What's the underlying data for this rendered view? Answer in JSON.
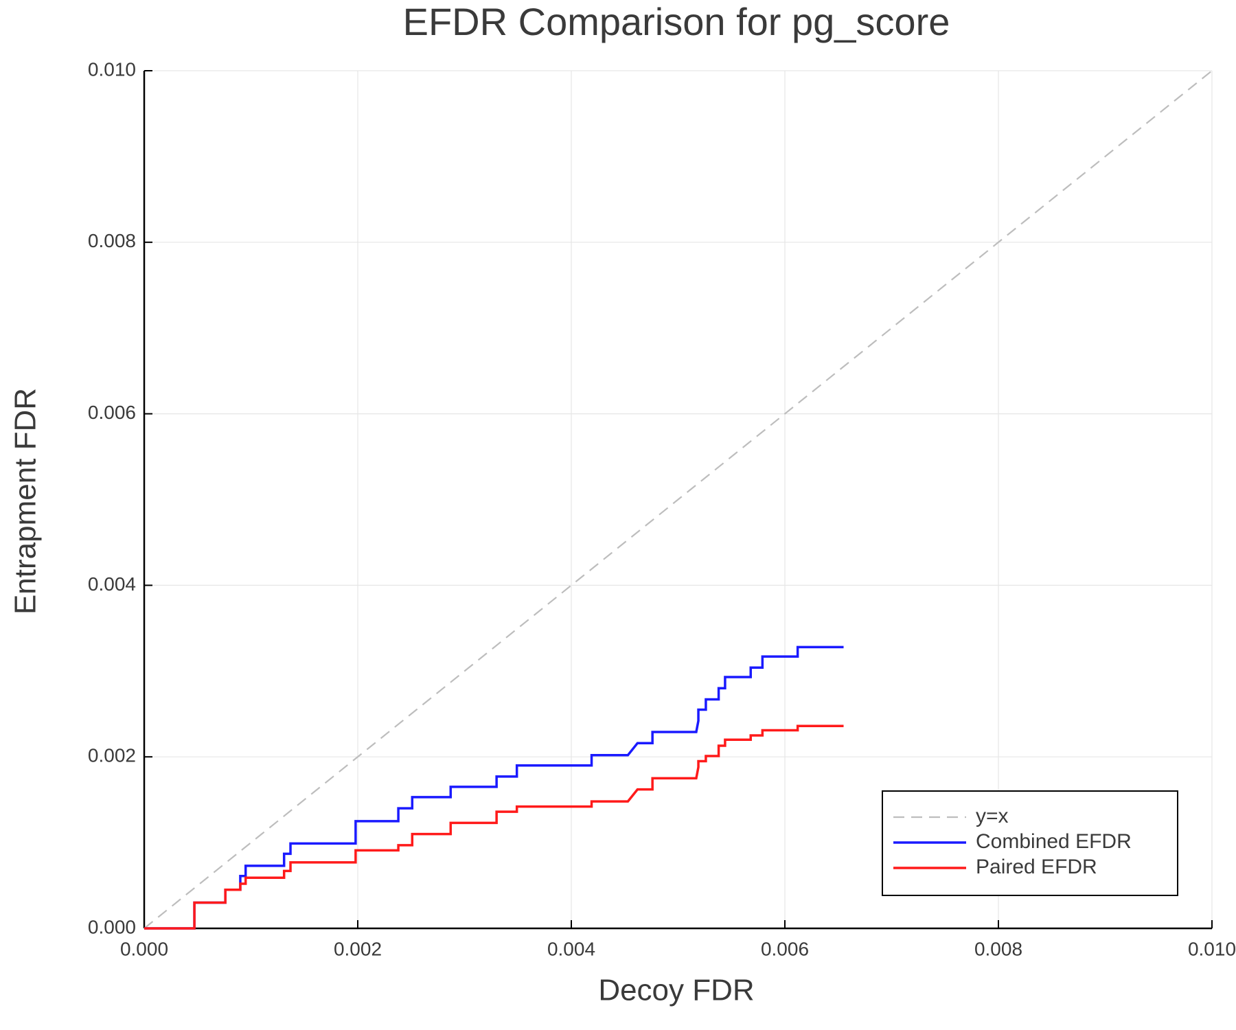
{
  "chart_data": {
    "type": "line",
    "title": "EFDR Comparison for pg_score",
    "x_label": "Decoy FDR",
    "y_label": "Entrapment FDR",
    "xlim": [
      0,
      0.01
    ],
    "ylim": [
      0,
      0.01
    ],
    "xticks": [
      {
        "value": 0,
        "label": "0.000"
      },
      {
        "value": 0.002,
        "label": "0.002"
      },
      {
        "value": 0.004,
        "label": "0.004"
      },
      {
        "value": 0.006,
        "label": "0.006"
      },
      {
        "value": 0.008,
        "label": "0.008"
      },
      {
        "value": 0.01,
        "label": "0.010"
      }
    ],
    "yticks": [
      {
        "value": 0,
        "label": "0.000"
      },
      {
        "value": 0.002,
        "label": "0.002"
      },
      {
        "value": 0.004,
        "label": "0.004"
      },
      {
        "value": 0.006,
        "label": "0.006"
      },
      {
        "value": 0.008,
        "label": "0.008"
      },
      {
        "value": 0.01,
        "label": "0.010"
      }
    ],
    "grid": true,
    "legend": "bottom-right",
    "series": [
      {
        "name": "y=x",
        "color": "#bdbdbd",
        "dashed": true,
        "x": [
          0,
          0.01
        ],
        "values": [
          0,
          0.01
        ]
      },
      {
        "name": "Combined EFDR",
        "color": "#1a1aff",
        "x": [
          0,
          0.00047,
          0.00047,
          0.00076,
          0.00076,
          0.0009,
          0.0009,
          0.00095,
          0.00095,
          0.00131,
          0.00131,
          0.00137,
          0.00137,
          0.00198,
          0.00198,
          0.00238,
          0.00238,
          0.00251,
          0.00251,
          0.00287,
          0.00287,
          0.0033,
          0.0033,
          0.00349,
          0.00349,
          0.00419,
          0.00419,
          0.00453,
          0.00462,
          0.00476,
          0.00476,
          0.00517,
          0.00519,
          0.00519,
          0.00526,
          0.00526,
          0.00538,
          0.00538,
          0.00544,
          0.00544,
          0.00568,
          0.00568,
          0.00579,
          0.00579,
          0.00612,
          0.00612,
          0.00655
        ],
        "values": [
          0,
          0,
          0.0003,
          0.0003,
          0.00045,
          0.00045,
          0.00061,
          0.00061,
          0.00073,
          0.00073,
          0.00087,
          0.00087,
          0.00099,
          0.00099,
          0.00125,
          0.00125,
          0.0014,
          0.0014,
          0.00153,
          0.00153,
          0.00165,
          0.00165,
          0.00177,
          0.00177,
          0.0019,
          0.0019,
          0.00202,
          0.00202,
          0.00216,
          0.00216,
          0.00229,
          0.00229,
          0.00242,
          0.00255,
          0.00255,
          0.00267,
          0.00267,
          0.0028,
          0.0028,
          0.00293,
          0.00293,
          0.00304,
          0.00304,
          0.00317,
          0.00317,
          0.00328,
          0.00328
        ]
      },
      {
        "name": "Paired EFDR",
        "color": "#ff1a1a",
        "x": [
          0,
          0.00047,
          0.00047,
          0.00076,
          0.00076,
          0.0009,
          0.0009,
          0.00095,
          0.00095,
          0.00131,
          0.00131,
          0.00137,
          0.00137,
          0.00198,
          0.00198,
          0.00238,
          0.00238,
          0.00251,
          0.00251,
          0.00287,
          0.00287,
          0.0033,
          0.0033,
          0.00349,
          0.00349,
          0.00419,
          0.00419,
          0.00453,
          0.00462,
          0.00476,
          0.00476,
          0.00517,
          0.00519,
          0.00519,
          0.00526,
          0.00526,
          0.00538,
          0.00538,
          0.00544,
          0.00544,
          0.00568,
          0.00568,
          0.00579,
          0.00579,
          0.00612,
          0.00612,
          0.00655
        ],
        "values": [
          0,
          0,
          0.0003,
          0.0003,
          0.00045,
          0.00045,
          0.00052,
          0.00052,
          0.00059,
          0.00059,
          0.00067,
          0.00067,
          0.00077,
          0.00077,
          0.00091,
          0.00091,
          0.00097,
          0.00097,
          0.0011,
          0.0011,
          0.00123,
          0.00123,
          0.00136,
          0.00136,
          0.00142,
          0.00142,
          0.00148,
          0.00148,
          0.00162,
          0.00162,
          0.00175,
          0.00175,
          0.00188,
          0.00195,
          0.00195,
          0.00201,
          0.00201,
          0.00213,
          0.00213,
          0.0022,
          0.0022,
          0.00225,
          0.00225,
          0.00231,
          0.00231,
          0.00236,
          0.00236
        ]
      }
    ]
  }
}
